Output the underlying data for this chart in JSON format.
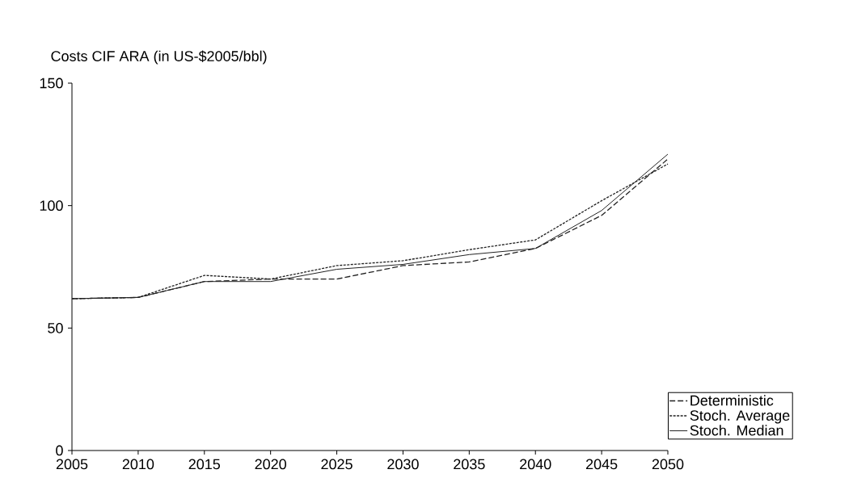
{
  "chart_data": {
    "type": "line",
    "ylabel": "Costs CIF ARA (in US-$2005/bbl)",
    "x": [
      2005,
      2010,
      2015,
      2020,
      2025,
      2030,
      2035,
      2040,
      2045,
      2050
    ],
    "series": [
      {
        "name": "Deterministic",
        "color": "#222222",
        "line_style": "dashed",
        "values": [
          62,
          62.5,
          69,
          70,
          70,
          75.5,
          77,
          82.5,
          96,
          119
        ]
      },
      {
        "name": "Stoch. Average",
        "color": "#222222",
        "line_style": "dotted",
        "values": [
          62,
          62.5,
          71.5,
          70,
          75.5,
          77.5,
          82,
          86,
          102,
          117
        ]
      },
      {
        "name": "Stoch. Median",
        "color": "#222222",
        "line_style": "solid",
        "values": [
          62,
          62.5,
          69,
          69,
          74,
          76,
          80,
          82.5,
          98,
          121
        ]
      }
    ],
    "xlim": [
      2005,
      2050
    ],
    "xticks": [
      2005,
      2010,
      2015,
      2020,
      2025,
      2030,
      2035,
      2040,
      2045,
      2050
    ],
    "ylim": [
      0,
      150
    ],
    "yticks": [
      0,
      50,
      100,
      150
    ],
    "grid": false,
    "legend": "bottom right",
    "marker": "none"
  }
}
